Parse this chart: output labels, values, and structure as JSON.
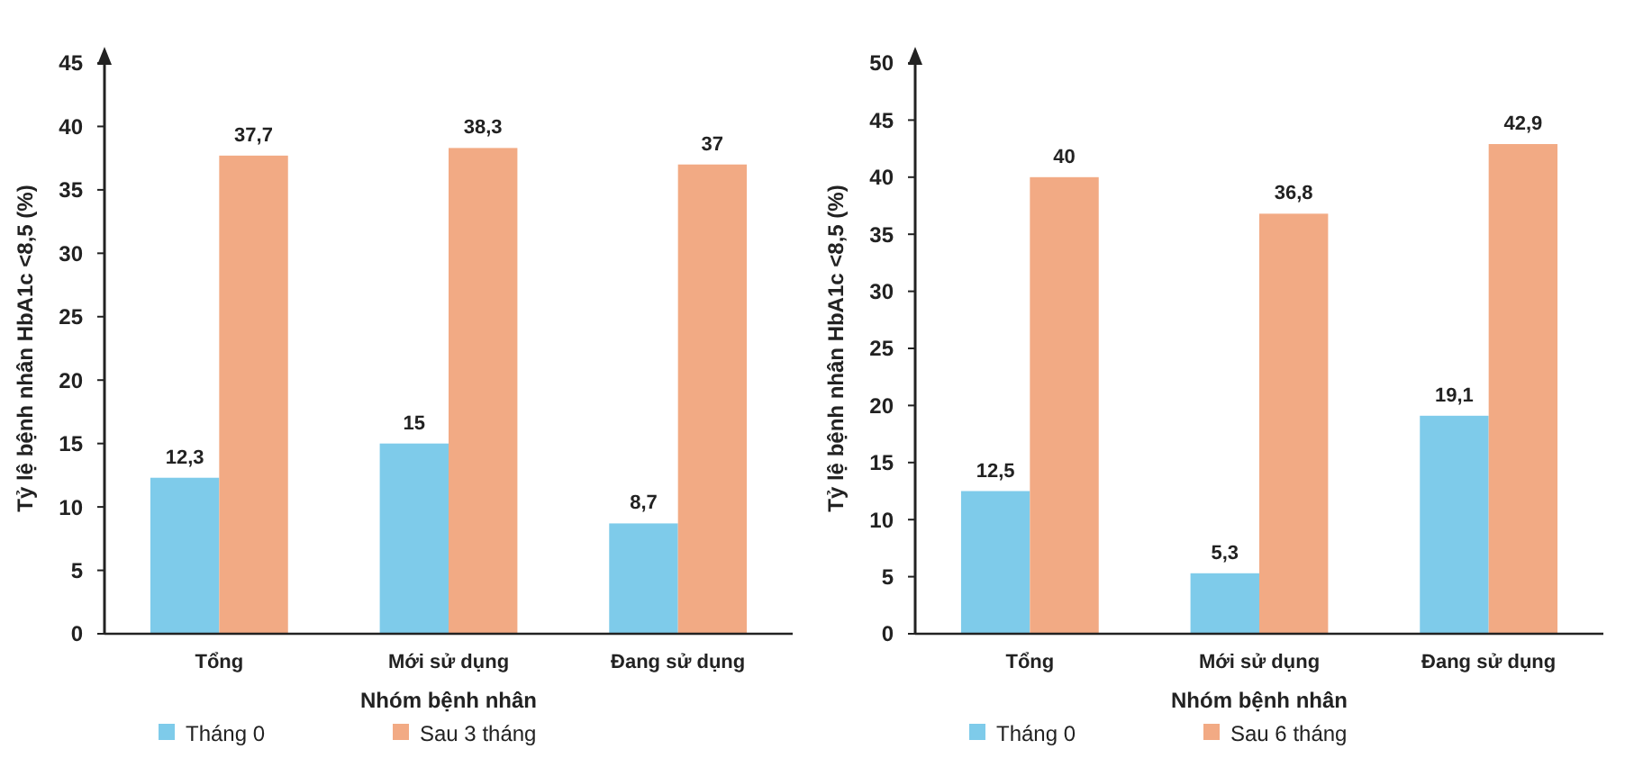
{
  "chart_data": [
    {
      "type": "bar",
      "categories": [
        "Tổng",
        "Mới sử dụng",
        "Đang sử dụng"
      ],
      "xlabel": "Nhóm bệnh nhân",
      "ylabel": "Tỷ lệ bệnh nhân HbA1c <8,5 (%)",
      "ylim": [
        0,
        45
      ],
      "yticks": [
        0,
        5,
        10,
        15,
        20,
        25,
        30,
        35,
        40,
        45
      ],
      "legend": "bottom",
      "grid": false,
      "series": [
        {
          "name": "Tháng 0",
          "color": "#7ecbea",
          "values": [
            12.3,
            15,
            8.7
          ],
          "value_labels": [
            "12,3",
            "15",
            "8,7"
          ]
        },
        {
          "name": "Sau 3 tháng",
          "color": "#f2aa84",
          "values": [
            37.7,
            38.3,
            37
          ],
          "value_labels": [
            "37,7",
            "38,3",
            "37"
          ]
        }
      ]
    },
    {
      "type": "bar",
      "categories": [
        "Tổng",
        "Mới sử dụng",
        "Đang sử dụng"
      ],
      "xlabel": "Nhóm bệnh nhân",
      "ylabel": "Tỷ lệ bệnh nhân HbA1c <8,5 (%)",
      "ylim": [
        0,
        50
      ],
      "yticks": [
        0,
        5,
        10,
        15,
        20,
        25,
        30,
        35,
        40,
        45,
        50
      ],
      "legend": "bottom",
      "grid": false,
      "series": [
        {
          "name": "Tháng 0",
          "color": "#7ecbea",
          "values": [
            12.5,
            5.3,
            19.1
          ],
          "value_labels": [
            "12,5",
            "5,3",
            "19,1"
          ]
        },
        {
          "name": "Sau 6 tháng",
          "color": "#f2aa84",
          "values": [
            40,
            36.8,
            42.9
          ],
          "value_labels": [
            "40",
            "36,8",
            "42,9"
          ]
        }
      ]
    }
  ]
}
